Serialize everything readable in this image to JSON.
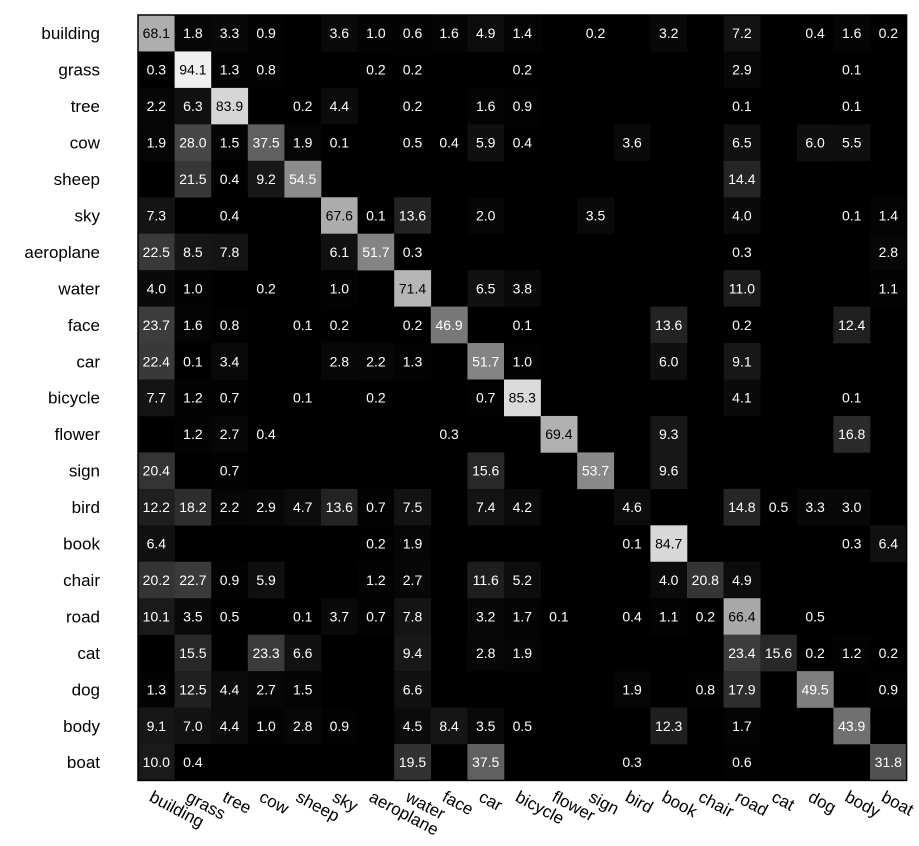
{
  "chart_data": {
    "type": "heatmap",
    "title": "",
    "xlabel": "",
    "ylabel": "",
    "value_range": [
      0,
      100
    ],
    "grid": false,
    "colormap": "grayscale (0 = black, 100 = white)",
    "rows": [
      "building",
      "grass",
      "tree",
      "cow",
      "sheep",
      "sky",
      "aeroplane",
      "water",
      "face",
      "car",
      "bicycle",
      "flower",
      "sign",
      "bird",
      "book",
      "chair",
      "road",
      "cat",
      "dog",
      "body",
      "boat"
    ],
    "cols": [
      "building",
      "grass",
      "tree",
      "cow",
      "sheep",
      "sky",
      "aeroplane",
      "water",
      "face",
      "car",
      "bicycle",
      "flower",
      "sign",
      "bird",
      "book",
      "chair",
      "road",
      "cat",
      "dog",
      "body",
      "boat"
    ],
    "values": [
      [
        68.1,
        1.8,
        3.3,
        0.9,
        null,
        3.6,
        1.0,
        0.6,
        1.6,
        4.9,
        1.4,
        null,
        0.2,
        null,
        3.2,
        null,
        7.2,
        null,
        0.4,
        1.6,
        0.2
      ],
      [
        0.3,
        94.1,
        1.3,
        0.8,
        null,
        null,
        0.2,
        0.2,
        null,
        null,
        0.2,
        null,
        null,
        null,
        null,
        null,
        2.9,
        null,
        null,
        0.1,
        null
      ],
      [
        2.2,
        6.3,
        83.9,
        null,
        0.2,
        4.4,
        null,
        0.2,
        null,
        1.6,
        0.9,
        null,
        null,
        null,
        null,
        null,
        0.1,
        null,
        null,
        0.1,
        null
      ],
      [
        1.9,
        28.0,
        1.5,
        37.5,
        1.9,
        0.1,
        null,
        0.5,
        0.4,
        5.9,
        0.4,
        null,
        null,
        3.6,
        null,
        null,
        6.5,
        null,
        6.0,
        5.5,
        null
      ],
      [
        null,
        21.5,
        0.4,
        9.2,
        54.5,
        null,
        null,
        null,
        null,
        null,
        null,
        null,
        null,
        null,
        null,
        null,
        14.4,
        null,
        null,
        null,
        null
      ],
      [
        7.3,
        null,
        0.4,
        null,
        null,
        67.6,
        0.1,
        13.6,
        null,
        2.0,
        null,
        null,
        3.5,
        null,
        null,
        null,
        4.0,
        null,
        null,
        0.1,
        1.4
      ],
      [
        22.5,
        8.5,
        7.8,
        null,
        null,
        6.1,
        51.7,
        0.3,
        null,
        null,
        null,
        null,
        null,
        null,
        null,
        null,
        0.3,
        null,
        null,
        null,
        2.8
      ],
      [
        4.0,
        1.0,
        null,
        0.2,
        null,
        1.0,
        null,
        71.4,
        null,
        6.5,
        3.8,
        null,
        null,
        null,
        null,
        null,
        11.0,
        null,
        null,
        null,
        1.1
      ],
      [
        23.7,
        1.6,
        0.8,
        null,
        0.1,
        0.2,
        null,
        0.2,
        46.9,
        null,
        0.1,
        null,
        null,
        null,
        13.6,
        null,
        0.2,
        null,
        null,
        12.4,
        null
      ],
      [
        22.4,
        0.1,
        3.4,
        null,
        null,
        2.8,
        2.2,
        1.3,
        null,
        51.7,
        1.0,
        null,
        null,
        null,
        6.0,
        null,
        9.1,
        null,
        null,
        null,
        null
      ],
      [
        7.7,
        1.2,
        0.7,
        null,
        0.1,
        null,
        0.2,
        null,
        null,
        0.7,
        85.3,
        null,
        null,
        null,
        null,
        null,
        4.1,
        null,
        null,
        0.1,
        null
      ],
      [
        null,
        1.2,
        2.7,
        0.4,
        null,
        null,
        null,
        null,
        0.3,
        null,
        null,
        69.4,
        null,
        null,
        9.3,
        null,
        null,
        null,
        null,
        16.8,
        null
      ],
      [
        20.4,
        null,
        0.7,
        null,
        null,
        null,
        null,
        null,
        null,
        15.6,
        null,
        null,
        53.7,
        null,
        9.6,
        null,
        null,
        null,
        null,
        null,
        null
      ],
      [
        12.2,
        18.2,
        2.2,
        2.9,
        4.7,
        13.6,
        0.7,
        7.5,
        null,
        7.4,
        4.2,
        null,
        null,
        4.6,
        null,
        null,
        14.8,
        0.5,
        3.3,
        3.0,
        null
      ],
      [
        6.4,
        null,
        null,
        null,
        null,
        null,
        0.2,
        1.9,
        null,
        null,
        null,
        null,
        null,
        0.1,
        84.7,
        null,
        null,
        null,
        null,
        0.3,
        6.4
      ],
      [
        20.2,
        22.7,
        0.9,
        5.9,
        null,
        null,
        1.2,
        2.7,
        null,
        11.6,
        5.2,
        null,
        null,
        null,
        4.0,
        20.8,
        4.9,
        null,
        null,
        null,
        null
      ],
      [
        10.1,
        3.5,
        0.5,
        null,
        0.1,
        3.7,
        0.7,
        7.8,
        null,
        3.2,
        1.7,
        0.1,
        null,
        0.4,
        1.1,
        0.2,
        66.4,
        null,
        0.5,
        null,
        null
      ],
      [
        null,
        15.5,
        null,
        23.3,
        6.6,
        null,
        null,
        9.4,
        null,
        2.8,
        1.9,
        null,
        null,
        null,
        null,
        null,
        23.4,
        15.6,
        0.2,
        1.2,
        0.2
      ],
      [
        1.3,
        12.5,
        4.4,
        2.7,
        1.5,
        null,
        null,
        6.6,
        null,
        null,
        null,
        null,
        null,
        1.9,
        null,
        0.8,
        17.9,
        null,
        49.5,
        null,
        0.9
      ],
      [
        9.1,
        7.0,
        4.4,
        1.0,
        2.8,
        0.9,
        null,
        4.5,
        8.4,
        3.5,
        0.5,
        null,
        null,
        null,
        12.3,
        null,
        1.7,
        null,
        null,
        43.9,
        null
      ],
      [
        10.0,
        0.4,
        null,
        null,
        null,
        null,
        null,
        19.5,
        null,
        37.5,
        null,
        null,
        null,
        0.3,
        null,
        null,
        0.6,
        null,
        null,
        null,
        31.8
      ]
    ]
  }
}
